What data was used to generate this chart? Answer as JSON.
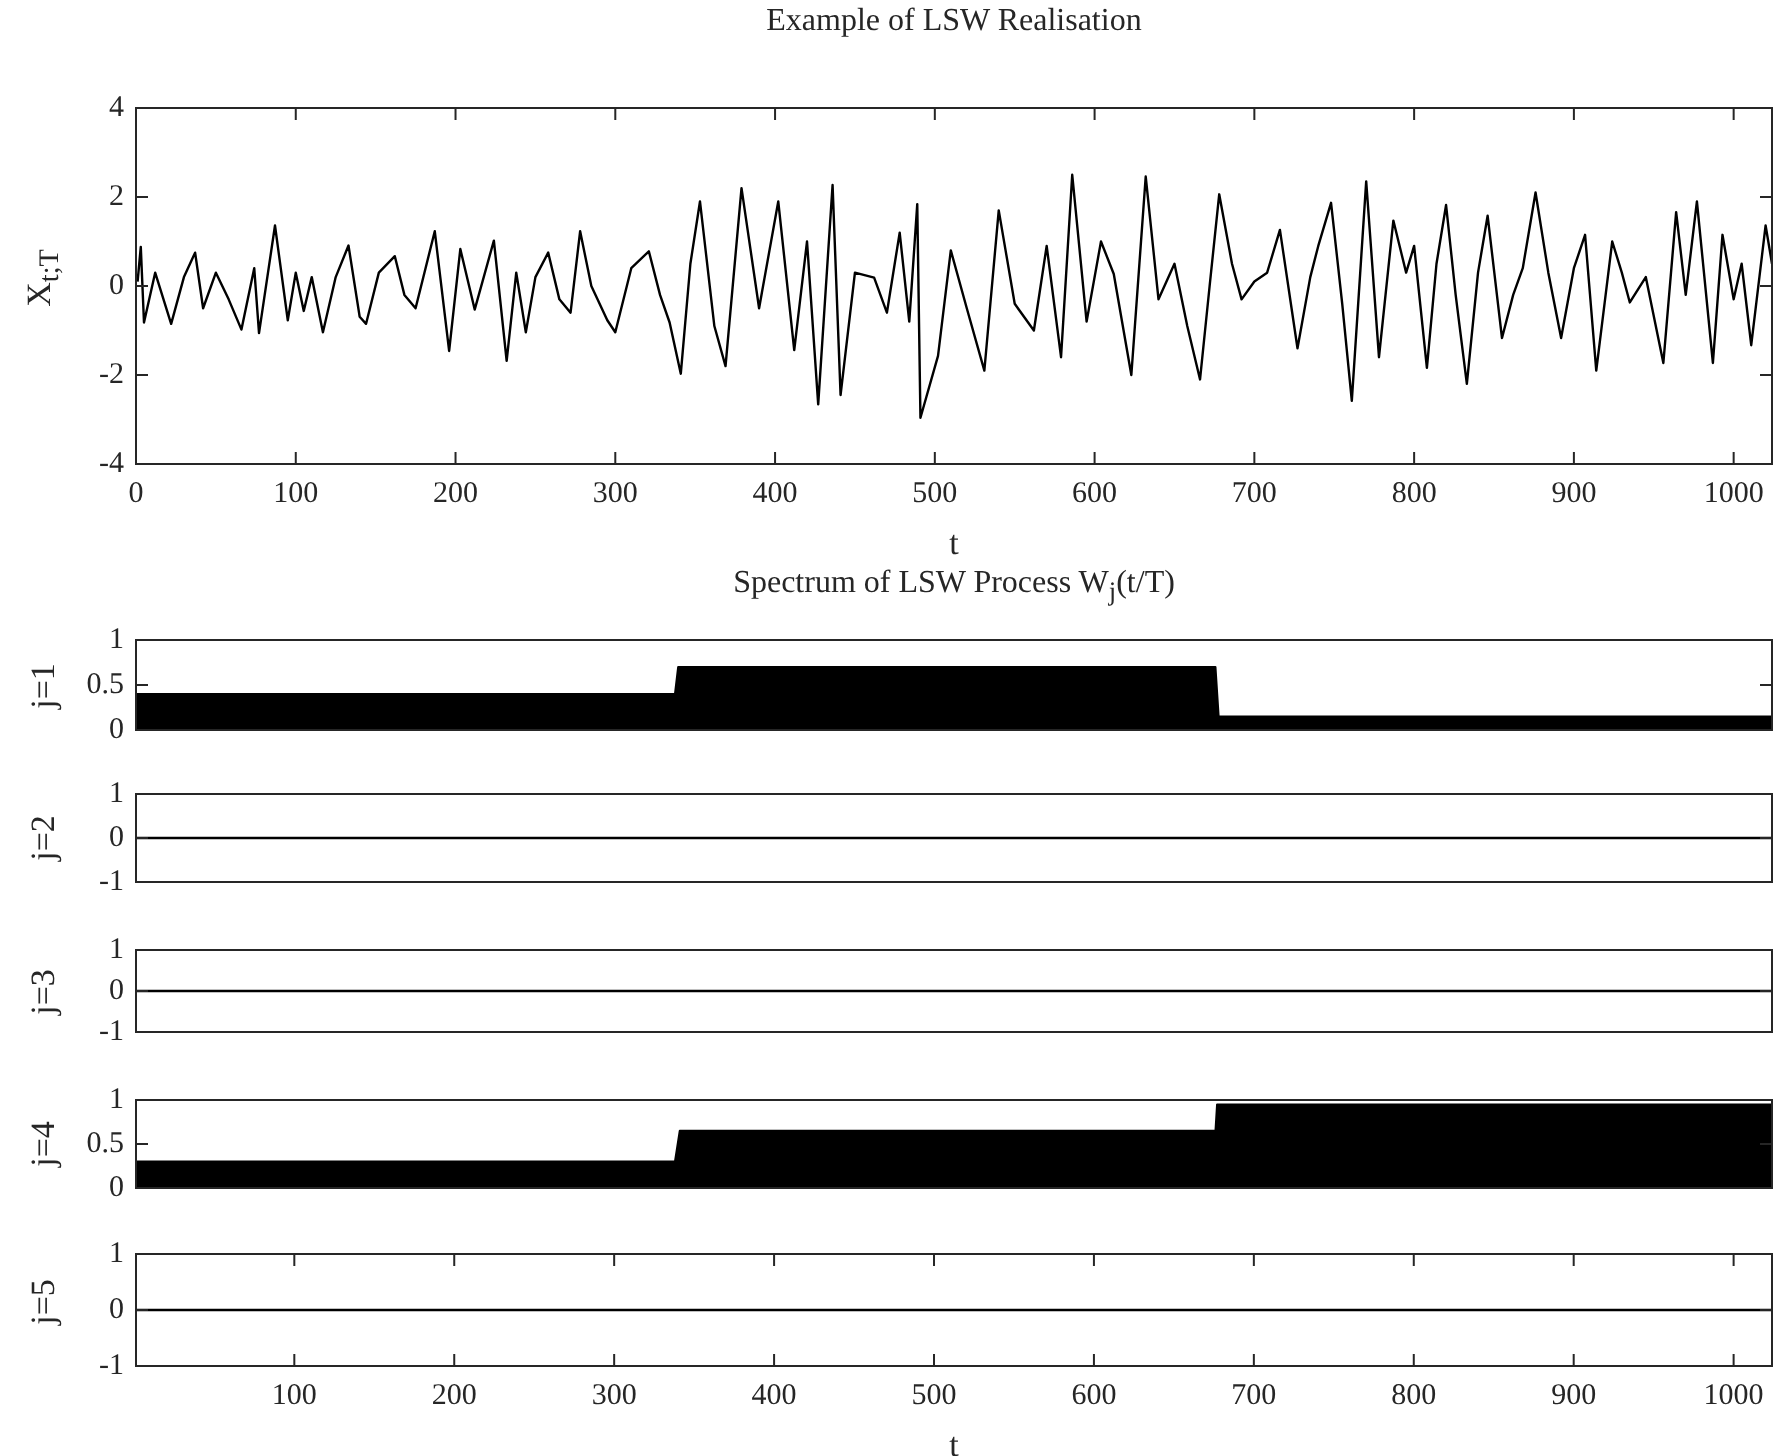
{
  "chart_data": [
    {
      "type": "line",
      "title": "Example of LSW Realisation",
      "xlabel": "t",
      "ylabel": "X$_{t;T}$",
      "color": "#000000",
      "xlim": [
        0,
        1024
      ],
      "ylim": [
        -4,
        4
      ],
      "xticks": [
        0,
        100,
        200,
        300,
        400,
        500,
        600,
        700,
        800,
        900,
        1000
      ],
      "yticks": [
        -4,
        -2,
        0,
        2,
        4
      ],
      "x": [
        1,
        3,
        5,
        12,
        22,
        30,
        37,
        42,
        50,
        58,
        66,
        74,
        77,
        87,
        95,
        100,
        105,
        110,
        117,
        125,
        133,
        140,
        144,
        152,
        162,
        168,
        175,
        187,
        196,
        203,
        212,
        224,
        232,
        238,
        244,
        250,
        258,
        265,
        272,
        278,
        285,
        295,
        300,
        310,
        321,
        328,
        334,
        341,
        347,
        353,
        362,
        369,
        379,
        390,
        402,
        412,
        420,
        427,
        436,
        441,
        450,
        462,
        470,
        478,
        484,
        489,
        491,
        502,
        510,
        520,
        531,
        540,
        550,
        562,
        570,
        579,
        586,
        595,
        604,
        612,
        623,
        632,
        640,
        650,
        658,
        666,
        672,
        678,
        686,
        692,
        700,
        708,
        716,
        727,
        735,
        740,
        748,
        755,
        761,
        770,
        778,
        787,
        795,
        800,
        808,
        814,
        820,
        826,
        833,
        840,
        846,
        855,
        862,
        868,
        876,
        884,
        892,
        900,
        907,
        914,
        924,
        930,
        935,
        945,
        956,
        964,
        970,
        977,
        987,
        993,
        1000,
        1005,
        1011,
        1020,
        1024
      ],
      "values": [
        0.1,
        0.88,
        -0.82,
        0.3,
        -0.85,
        0.2,
        0.75,
        -0.5,
        0.3,
        -0.3,
        -0.98,
        0.4,
        -1.06,
        1.36,
        -0.77,
        0.3,
        -0.56,
        0.2,
        -1.04,
        0.2,
        0.91,
        -0.69,
        -0.85,
        0.3,
        0.67,
        -0.2,
        -0.5,
        1.23,
        -1.46,
        0.83,
        -0.53,
        1.02,
        -1.68,
        0.3,
        -1.04,
        0.2,
        0.75,
        -0.3,
        -0.6,
        1.23,
        0,
        -0.77,
        -1.04,
        0.4,
        0.78,
        -0.2,
        -0.82,
        -1.97,
        0.5,
        1.9,
        -0.9,
        -1.8,
        2.2,
        -0.5,
        1.9,
        -1.44,
        1.0,
        -2.66,
        2.27,
        -2.45,
        0.3,
        0.19,
        -0.6,
        1.2,
        -0.8,
        1.84,
        -2.96,
        -1.57,
        0.8,
        -0.5,
        -1.9,
        1.7,
        -0.4,
        -1.0,
        0.9,
        -1.6,
        2.5,
        -0.8,
        1.0,
        0.27,
        -2.0,
        2.46,
        -0.3,
        0.5,
        -0.9,
        -2.1,
        0.0,
        2.06,
        0.5,
        -0.3,
        0.1,
        0.3,
        1.26,
        -1.4,
        0.2,
        0.9,
        1.87,
        -0.4,
        -2.58,
        2.35,
        -1.6,
        1.47,
        0.3,
        0.9,
        -1.84,
        0.5,
        1.82,
        -0.2,
        -2.2,
        0.3,
        1.58,
        -1.17,
        -0.2,
        0.4,
        2.1,
        0.3,
        -1.17,
        0.4,
        1.15,
        -1.9,
        1.0,
        0.3,
        -0.37,
        0.2,
        -1.73,
        1.66,
        -0.2,
        1.9,
        -1.73,
        1.15,
        -0.3,
        0.5,
        -1.33,
        1.36,
        0.5
      ]
    },
    {
      "type": "area",
      "title": "Spectrum of LSW Process  W$_{j}$(t/T)",
      "ylabel": "j=1",
      "color": "#000000",
      "xlim": [
        1,
        1024
      ],
      "ylim": [
        0,
        1
      ],
      "yticks": [
        0,
        0.5,
        1
      ],
      "tick_labels": "y",
      "x": [
        1,
        338,
        340,
        676,
        678,
        1024
      ],
      "values": [
        0.4,
        0.4,
        0.7,
        0.7,
        0.15,
        0.15
      ]
    },
    {
      "type": "line",
      "ylabel": "j=2",
      "color": "#000000",
      "xlim": [
        1,
        1024
      ],
      "ylim": [
        -1,
        1
      ],
      "yticks": [
        -1,
        0,
        1
      ],
      "tick_labels": "y",
      "x": [
        1,
        1024
      ],
      "values": [
        0,
        0
      ]
    },
    {
      "type": "line",
      "ylabel": "j=3",
      "color": "#000000",
      "xlim": [
        1,
        1024
      ],
      "ylim": [
        -1,
        1
      ],
      "yticks": [
        -1,
        0,
        1
      ],
      "tick_labels": "y",
      "x": [
        1,
        1024
      ],
      "values": [
        0,
        0
      ]
    },
    {
      "type": "area",
      "ylabel": "j=4",
      "color": "#000000",
      "xlim": [
        1,
        1024
      ],
      "ylim": [
        0,
        1
      ],
      "yticks": [
        0,
        0.5,
        1
      ],
      "tick_labels": "y",
      "x": [
        1,
        338,
        341,
        676,
        677,
        1024
      ],
      "values": [
        0.3,
        0.3,
        0.65,
        0.65,
        0.95,
        0.95
      ]
    },
    {
      "type": "line",
      "xlabel": "t",
      "ylabel": "j=5",
      "color": "#000000",
      "xlim": [
        1,
        1024
      ],
      "ylim": [
        -1,
        1
      ],
      "xticks": [
        100,
        200,
        300,
        400,
        500,
        600,
        700,
        800,
        900,
        1000
      ],
      "yticks": [
        -1,
        0,
        1
      ],
      "x": [
        1,
        1024
      ],
      "values": [
        0,
        0
      ]
    }
  ]
}
